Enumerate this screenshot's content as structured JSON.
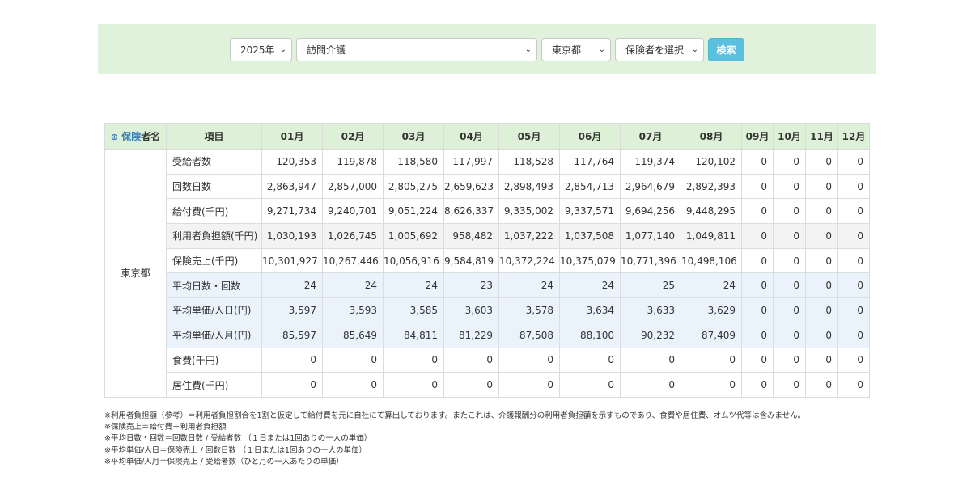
{
  "filters": {
    "year": "2025年",
    "service": "訪問介護",
    "prefecture": "東京都",
    "insurer": "保険者を選択",
    "search_label": "検索"
  },
  "table": {
    "header_plus": "⊕",
    "header_name_link": "保険",
    "header_name_rest": "者名",
    "header_item": "項目",
    "months": [
      "01月",
      "02月",
      "03月",
      "04月",
      "05月",
      "06月",
      "07月",
      "08月",
      "09月",
      "10月",
      "11月",
      "12月"
    ],
    "prefecture": "東京都",
    "rows": [
      {
        "label": "受給者数",
        "style": "white",
        "values": [
          "120,353",
          "119,878",
          "118,580",
          "117,997",
          "118,528",
          "117,764",
          "119,374",
          "120,102",
          "0",
          "0",
          "0",
          "0"
        ]
      },
      {
        "label": "回数日数",
        "style": "white",
        "values": [
          "2,863,947",
          "2,857,000",
          "2,805,275",
          "2,659,623",
          "2,898,493",
          "2,854,713",
          "2,964,679",
          "2,892,393",
          "0",
          "0",
          "0",
          "0"
        ]
      },
      {
        "label": "給付費(千円)",
        "style": "white",
        "values": [
          "9,271,734",
          "9,240,701",
          "9,051,224",
          "8,626,337",
          "9,335,002",
          "9,337,571",
          "9,694,256",
          "9,448,295",
          "0",
          "0",
          "0",
          "0"
        ]
      },
      {
        "label": "利用者負担額(千円)",
        "style": "grey",
        "values": [
          "1,030,193",
          "1,026,745",
          "1,005,692",
          "958,482",
          "1,037,222",
          "1,037,508",
          "1,077,140",
          "1,049,811",
          "0",
          "0",
          "0",
          "0"
        ]
      },
      {
        "label": "保険売上(千円)",
        "style": "white",
        "values": [
          "10,301,927",
          "10,267,446",
          "10,056,916",
          "9,584,819",
          "10,372,224",
          "10,375,079",
          "10,771,396",
          "10,498,106",
          "0",
          "0",
          "0",
          "0"
        ]
      },
      {
        "label": "平均日数・回数",
        "style": "blue",
        "values": [
          "24",
          "24",
          "24",
          "23",
          "24",
          "24",
          "25",
          "24",
          "0",
          "0",
          "0",
          "0"
        ]
      },
      {
        "label": "平均単価/人日(円)",
        "style": "blue",
        "values": [
          "3,597",
          "3,593",
          "3,585",
          "3,603",
          "3,578",
          "3,634",
          "3,633",
          "3,629",
          "0",
          "0",
          "0",
          "0"
        ]
      },
      {
        "label": "平均単価/人月(円)",
        "style": "blue",
        "values": [
          "85,597",
          "85,649",
          "84,811",
          "81,229",
          "87,508",
          "88,100",
          "90,232",
          "87,409",
          "0",
          "0",
          "0",
          "0"
        ]
      },
      {
        "label": "食費(千円)",
        "style": "white",
        "values": [
          "0",
          "0",
          "0",
          "0",
          "0",
          "0",
          "0",
          "0",
          "0",
          "0",
          "0",
          "0"
        ]
      },
      {
        "label": "居住費(千円)",
        "style": "white",
        "values": [
          "0",
          "0",
          "0",
          "0",
          "0",
          "0",
          "0",
          "0",
          "0",
          "0",
          "0",
          "0"
        ]
      }
    ]
  },
  "notes": [
    "※利用者負担額（参考）＝利用者負担割合を1割と仮定して給付費を元に自社にて算出しております。またこれは、介護報酬分の利用者負担額を示すものであり、食費や居住費、オムツ代等は含みません。",
    "※保険売上＝給付費＋利用者負担額",
    "※平均日数・回数＝回数日数 / 受給者数 （１日または1回ありの一人の単価）",
    "※平均単価/人日＝保険売上 / 回数日数 （１日または1回ありの一人の単価）",
    "※平均単価/人月＝保険売上 / 受給者数（ひと月の一人あたりの単価）"
  ]
}
